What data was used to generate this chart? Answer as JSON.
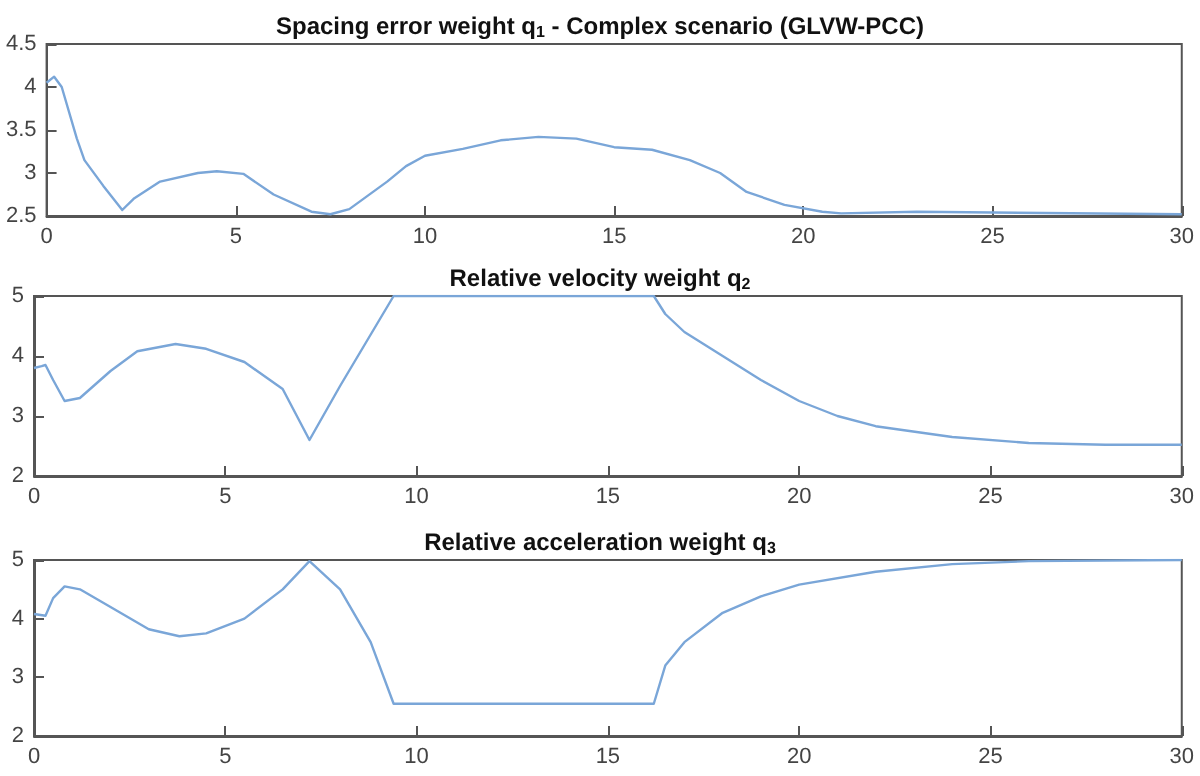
{
  "chart_data": [
    {
      "type": "line",
      "title": "Spacing error weight q$_{1}$ - Complex scenario (GLVW-PCC)",
      "xlim": [
        0,
        30
      ],
      "xticks": [
        0,
        5,
        10,
        15,
        20,
        25,
        30
      ],
      "ylim": [
        2.5,
        4.5
      ],
      "yticks": [
        2.5,
        3,
        3.5,
        4,
        4.5
      ],
      "grid": false,
      "marker": "none",
      "line_style": "solid",
      "series": [
        {
          "color": "#7aa6d8",
          "x": [
            0,
            0.2,
            0.4,
            0.8,
            1,
            1.5,
            2,
            2.3,
            3,
            4,
            4.5,
            5.2,
            6,
            7,
            7.5,
            8,
            9,
            9.5,
            10,
            11,
            12,
            13,
            14,
            15,
            16,
            17,
            17.8,
            18.5,
            19.5,
            20.5,
            21,
            23,
            25,
            30
          ],
          "values": [
            4.05,
            4.12,
            4,
            3.4,
            3.15,
            2.85,
            2.57,
            2.7,
            2.9,
            3,
            3.02,
            2.99,
            2.75,
            2.55,
            2.52,
            2.58,
            2.9,
            3.08,
            3.2,
            3.28,
            3.38,
            3.42,
            3.4,
            3.3,
            3.27,
            3.15,
            3,
            2.78,
            2.63,
            2.55,
            2.53,
            2.55,
            2.54,
            2.52
          ]
        }
      ]
    },
    {
      "type": "line",
      "title": "Relative velocity weight q$_{2}$",
      "xlim": [
        0,
        30
      ],
      "xticks": [
        0,
        5,
        10,
        15,
        20,
        25,
        30
      ],
      "ylim": [
        2,
        5
      ],
      "yticks": [
        2,
        3,
        4,
        5
      ],
      "grid": false,
      "marker": "none",
      "line_style": "solid",
      "series": [
        {
          "color": "#7aa6d8",
          "x": [
            0,
            0.2,
            0.3,
            0.5,
            0.8,
            1.2,
            2,
            2.7,
            3.7,
            4.5,
            5.5,
            6.5,
            7.2,
            8,
            9.4,
            16.2,
            16.5,
            17,
            18,
            19,
            20,
            21,
            22,
            24,
            26,
            28,
            30
          ],
          "values": [
            3.8,
            3.83,
            3.85,
            3.6,
            3.25,
            3.3,
            3.75,
            4.08,
            4.2,
            4.12,
            3.9,
            3.45,
            2.6,
            3.5,
            5,
            5,
            4.7,
            4.4,
            4,
            3.6,
            3.25,
            3,
            2.83,
            2.65,
            2.55,
            2.52,
            2.52
          ]
        }
      ]
    },
    {
      "type": "line",
      "title": "Relative acceleration weight q$_{3}$",
      "xlim": [
        0,
        30
      ],
      "xticks": [
        0,
        5,
        10,
        15,
        20,
        25,
        30
      ],
      "ylim": [
        2,
        5
      ],
      "yticks": [
        2,
        3,
        4,
        5
      ],
      "grid": false,
      "marker": "none",
      "line_style": "solid",
      "series": [
        {
          "color": "#7aa6d8",
          "x": [
            0,
            0.3,
            0.5,
            0.8,
            1.2,
            2,
            3,
            3.8,
            4.5,
            5.5,
            6.5,
            7.2,
            8,
            8.8,
            9.4,
            16.2,
            16.5,
            17,
            18,
            19,
            20,
            22,
            24,
            26,
            30
          ],
          "values": [
            4.08,
            4.05,
            4.35,
            4.55,
            4.5,
            4.2,
            3.82,
            3.7,
            3.75,
            4,
            4.5,
            4.98,
            4.5,
            3.6,
            2.55,
            2.55,
            3.2,
            3.6,
            4.1,
            4.38,
            4.58,
            4.8,
            4.93,
            4.98,
            5
          ]
        }
      ]
    }
  ]
}
